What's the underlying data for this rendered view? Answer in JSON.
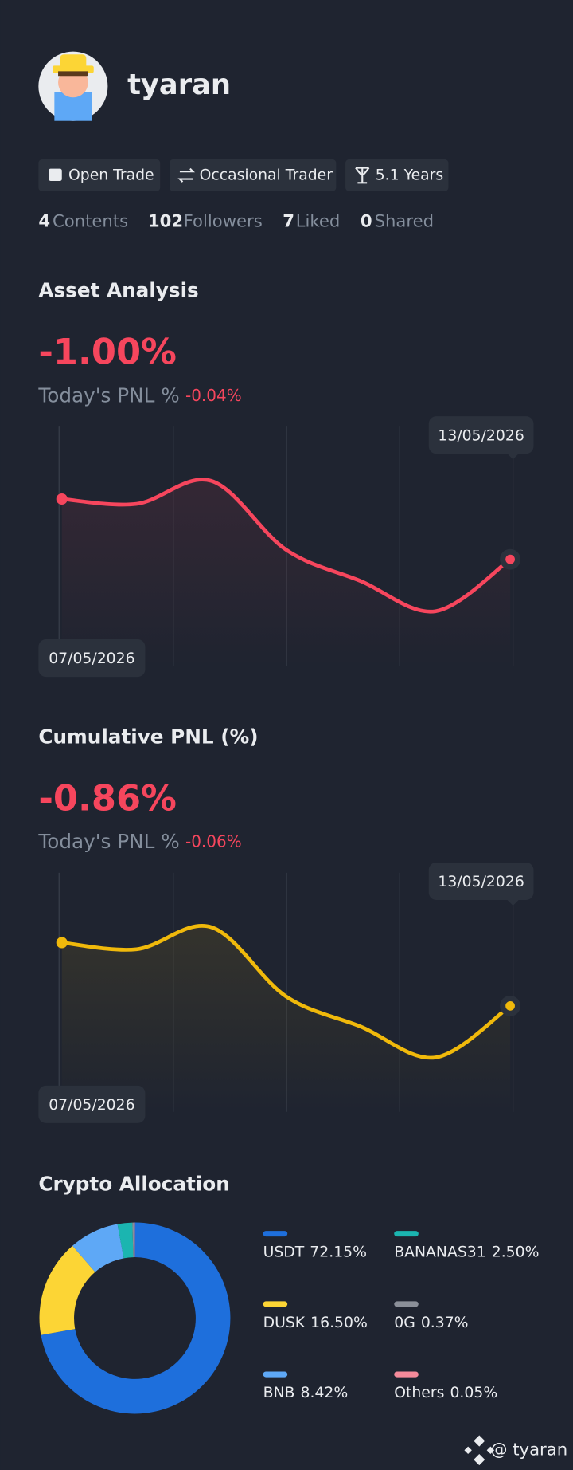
{
  "profile": {
    "name": "tyaran",
    "badges": [
      "Open Trade",
      "Occasional Trader",
      "5.1 Years"
    ],
    "stats": [
      {
        "count": 4,
        "label": "Contents"
      },
      {
        "count": 102,
        "label": "Followers"
      },
      {
        "count": 7,
        "label": "Liked"
      },
      {
        "count": 0,
        "label": "Shared"
      }
    ]
  },
  "chart_data": [
    {
      "type": "line",
      "title": "Asset Analysis",
      "headline": "-1.00%",
      "subtitle": "Today's PNL %",
      "change": "-0.04%",
      "categories": [
        "07/05/2026",
        null,
        null,
        null,
        null,
        null,
        "13/05/2026"
      ],
      "series": [
        {
          "name": "Asset",
          "color": "#f6465d",
          "values": [
            0,
            -0.08,
            0.3,
            -0.84,
            -1.36,
            -1.86,
            -1.0
          ]
        }
      ]
    },
    {
      "type": "line",
      "title": "Cumulative PNL (%)",
      "headline": "-0.86%",
      "subtitle": "Today's PNL %",
      "change": "-0.06%",
      "categories": [
        "07/05/2026",
        null,
        null,
        null,
        null,
        null,
        "13/05/2026"
      ],
      "series": [
        {
          "name": "Cumulative",
          "color": "#f0b90b",
          "values": [
            0,
            -0.09,
            0.21,
            -0.73,
            -1.14,
            -1.56,
            -0.86
          ]
        }
      ]
    },
    {
      "type": "donut",
      "title": "Crypto Allocation",
      "categories": [
        "USDT",
        "DUSK",
        "BNB",
        "BANANAS31",
        "0G",
        "Others"
      ],
      "values": [
        72.15,
        16.5,
        8.42,
        2.5,
        0.37,
        0.05
      ],
      "value_labels": [
        "72.15%",
        "16.50%",
        "8.42%",
        "2.50%",
        "0.37%",
        "0.05%"
      ],
      "colors": [
        "#1e6fdc",
        "#fcd535",
        "#5ea8f6",
        "#1bb5b0",
        "#8a8f98",
        "#f48a9a"
      ]
    }
  ],
  "footer": "@ tyaran"
}
